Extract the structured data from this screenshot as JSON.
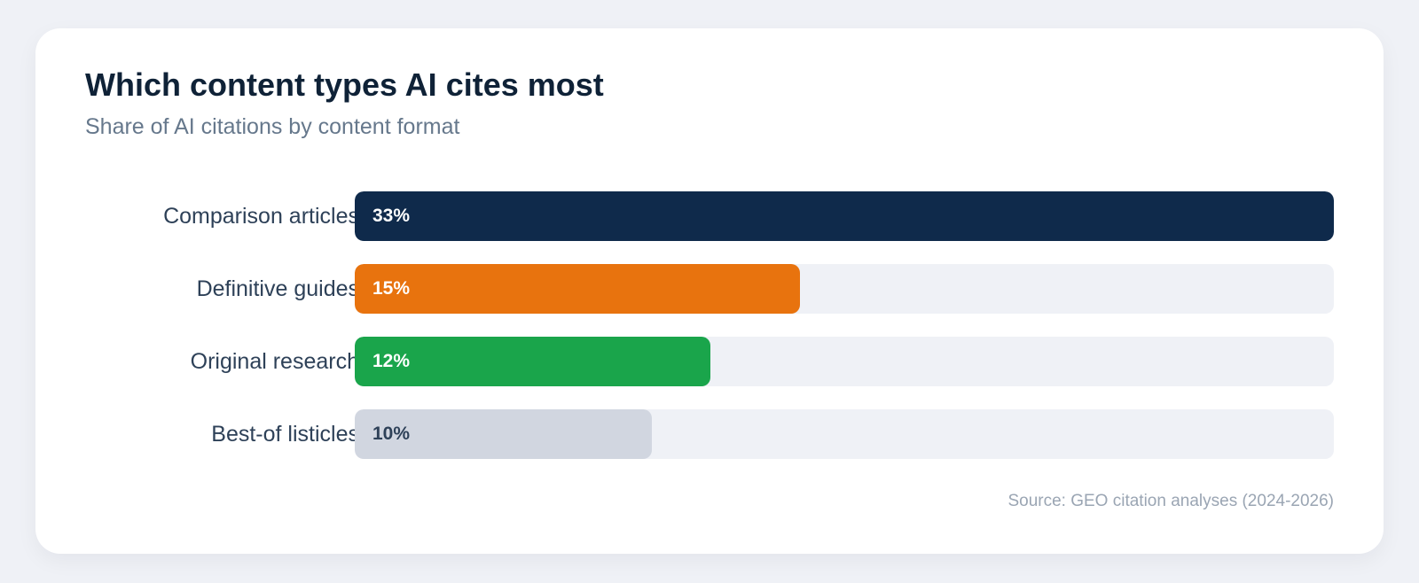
{
  "chart_data": {
    "type": "bar",
    "orientation": "horizontal",
    "title": "Which content types AI cites most",
    "subtitle": "Share of AI citations by content format",
    "categories": [
      "Comparison articles",
      "Definitive guides",
      "Original research",
      "Best-of listicles"
    ],
    "values": [
      33,
      15,
      12,
      10
    ],
    "value_labels": [
      "33%",
      "15%",
      "12%",
      "10%"
    ],
    "bar_colors": [
      "#0f2a4b",
      "#e8730e",
      "#1aa54b",
      "#d1d6e0"
    ],
    "value_label_colors": [
      "#ffffff",
      "#ffffff",
      "#ffffff",
      "#2e4158"
    ],
    "track_color": "#eff1f6",
    "xlim": [
      0,
      33
    ],
    "grid": false,
    "source": "Source: GEO citation analyses (2024-2026)"
  }
}
